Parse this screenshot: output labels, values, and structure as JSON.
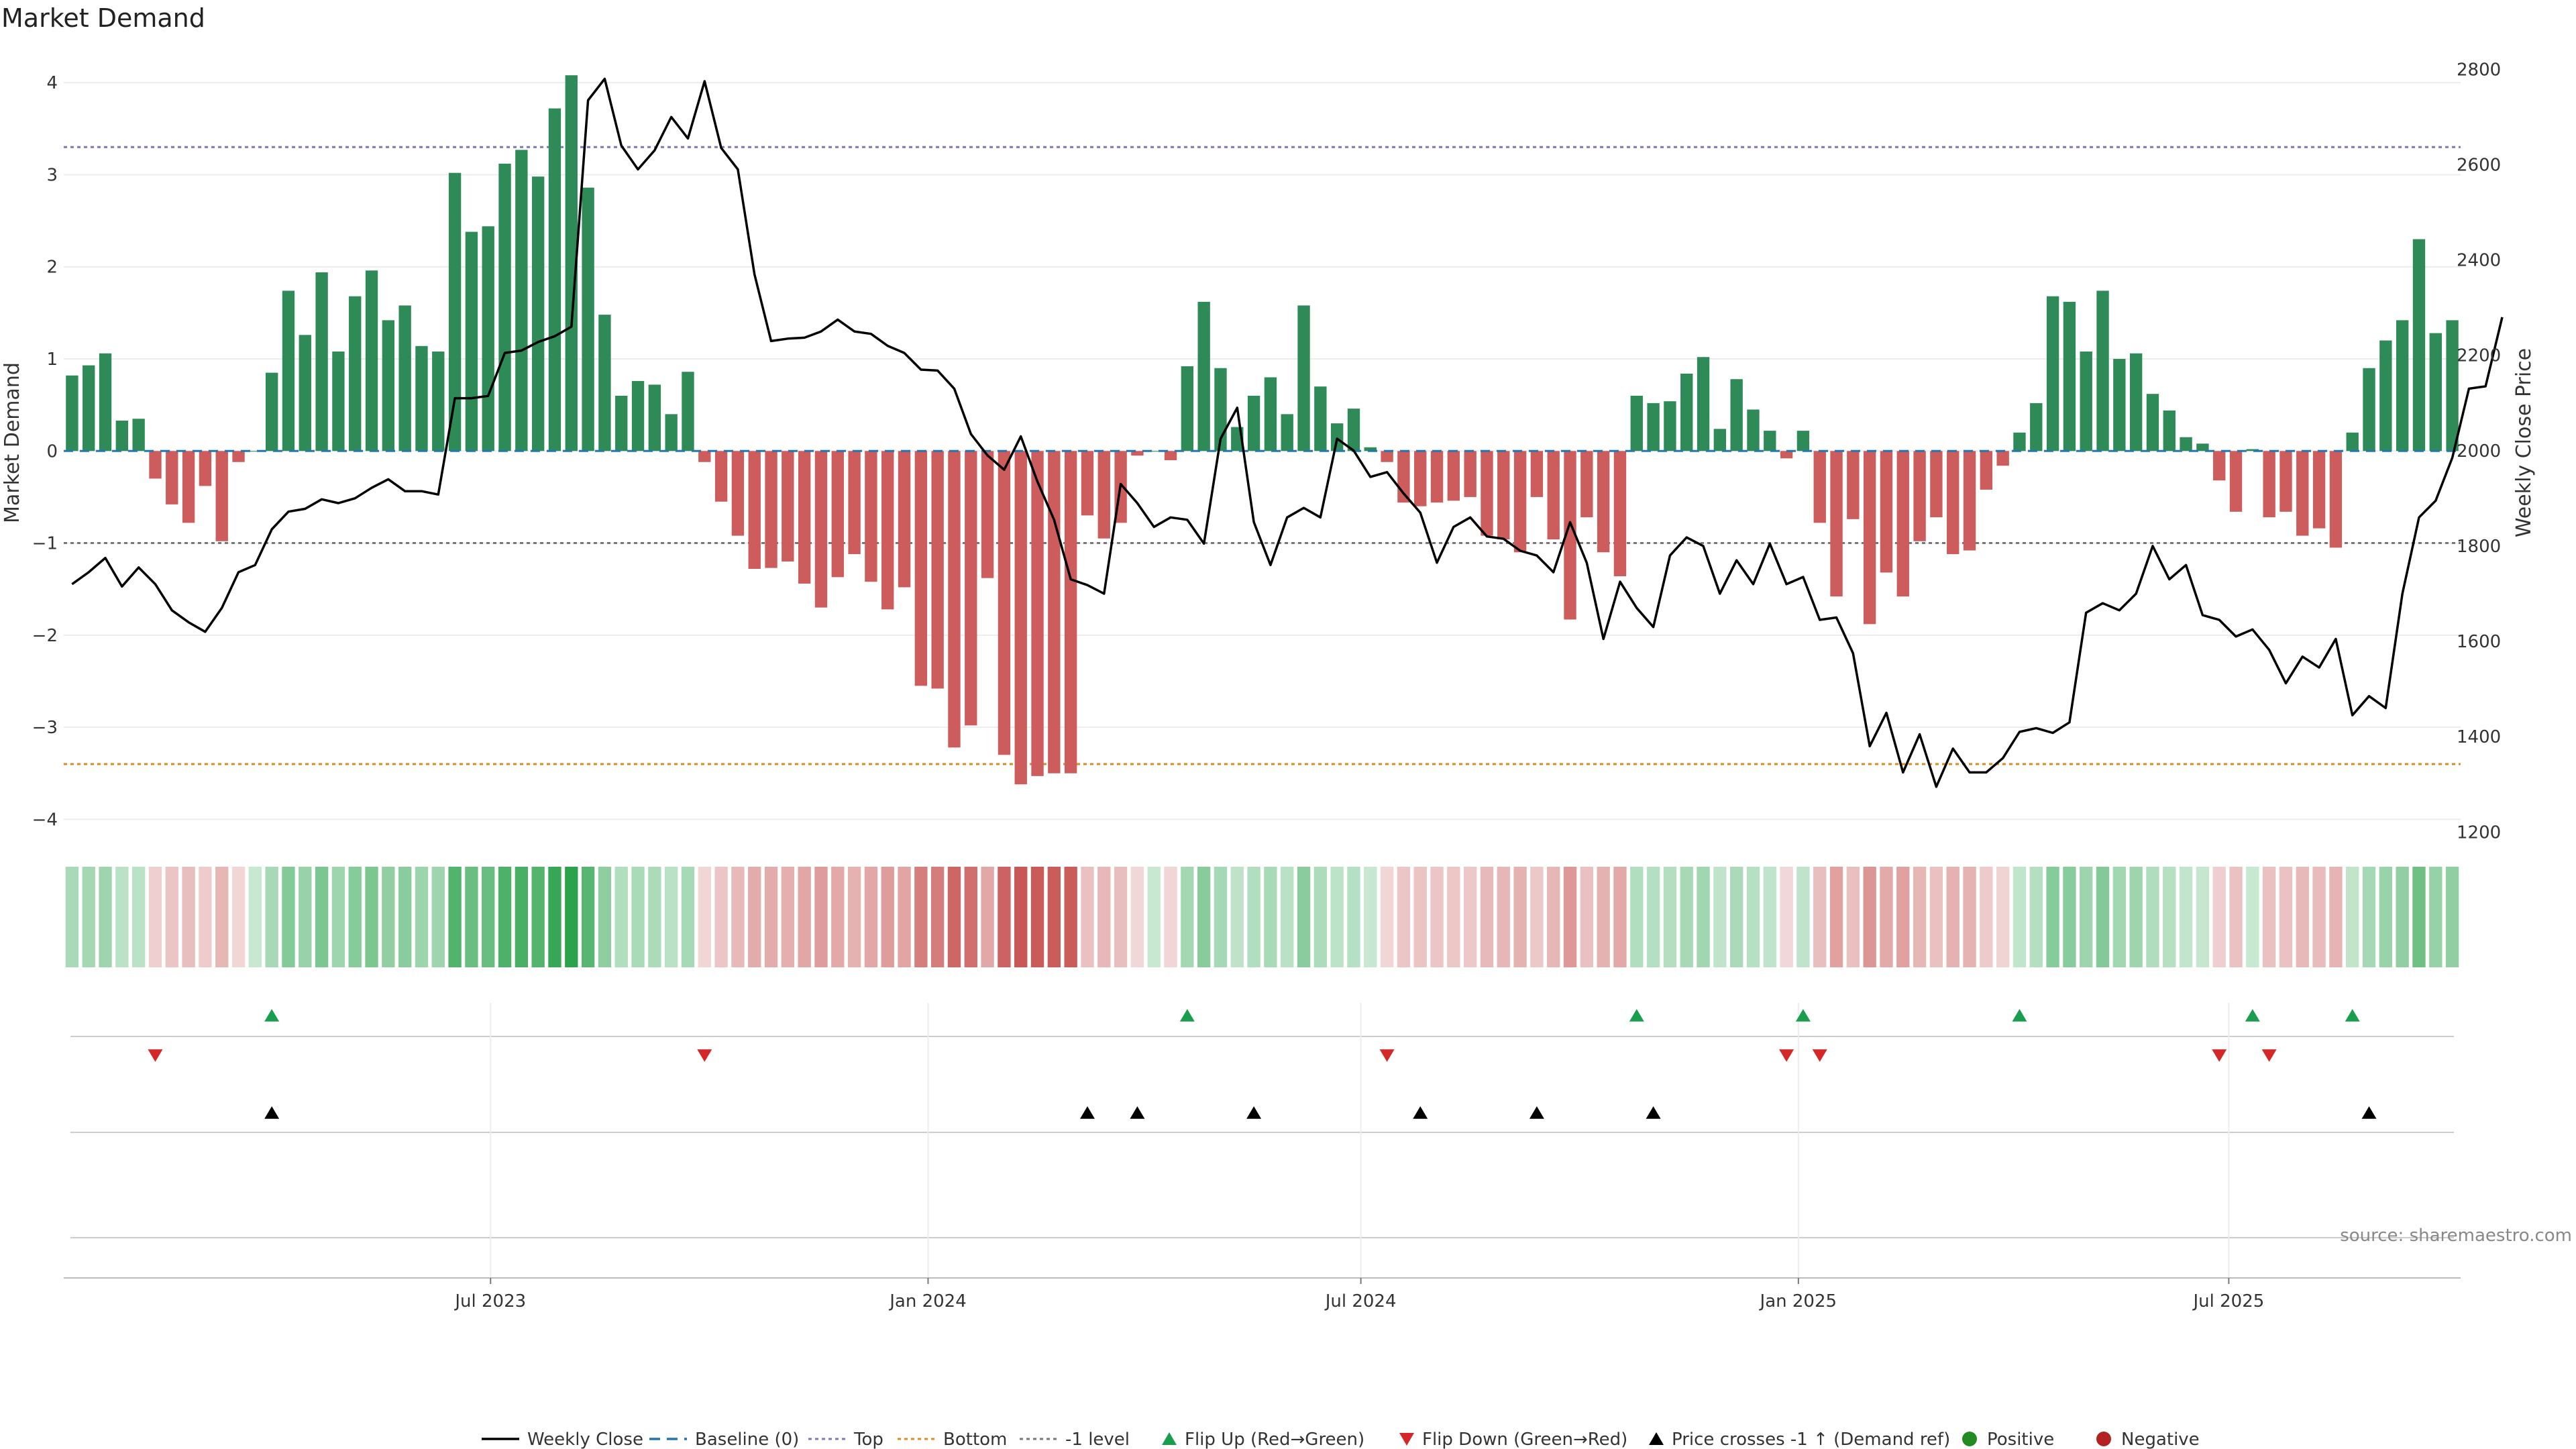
{
  "chart_data": {
    "type": "bar",
    "title": "Market Demand",
    "ylabel_left": "Market Demand",
    "ylabel_right": "Weekly Close Price",
    "ylim_left": [
      -4.5,
      4.3
    ],
    "ylim_right": [
      1130,
      2830
    ],
    "yticks_left": [
      "4",
      "3",
      "2",
      "1",
      "0",
      "−1",
      "−2",
      "−3",
      "−4"
    ],
    "yticks_right": [
      "2800",
      "2600",
      "2400",
      "2200",
      "2000",
      "1800",
      "1600",
      "1400",
      "1200"
    ],
    "xticks": [
      "Jul 2023",
      "Jan 2024",
      "Jul 2024",
      "Jan 2025",
      "Jul 2025"
    ],
    "x_start": "2023-01-06",
    "x_step_days": 7,
    "reference_lines": {
      "top": 3.3,
      "bottom": -3.4,
      "minus_one": -1,
      "baseline": 0
    },
    "demand": [
      0.82,
      0.93,
      1.06,
      0.33,
      0.35,
      -0.3,
      -0.58,
      -0.78,
      -0.38,
      -0.98,
      -0.12,
      0.0,
      0.85,
      1.74,
      1.26,
      1.94,
      1.08,
      1.68,
      1.96,
      1.42,
      1.58,
      1.14,
      1.08,
      3.02,
      2.38,
      2.44,
      3.12,
      3.27,
      2.98,
      3.72,
      4.08,
      2.86,
      1.48,
      0.6,
      0.76,
      0.72,
      0.4,
      0.86,
      -0.12,
      -0.55,
      -0.92,
      -1.28,
      -1.27,
      -1.2,
      -1.44,
      -1.7,
      -1.37,
      -1.12,
      -1.42,
      -1.72,
      -1.48,
      -2.55,
      -2.58,
      -3.22,
      -2.98,
      -1.38,
      -3.3,
      -3.62,
      -3.53,
      -3.5,
      -3.5,
      -0.7,
      -0.95,
      -0.78,
      -0.05,
      0.0,
      -0.1,
      0.92,
      1.62,
      0.9,
      0.26,
      0.6,
      0.8,
      0.4,
      1.58,
      0.7,
      0.3,
      0.46,
      0.04,
      -0.12,
      -0.56,
      -0.6,
      -0.56,
      -0.54,
      -0.5,
      -0.92,
      -0.96,
      -1.1,
      -0.5,
      -0.96,
      -1.83,
      -0.72,
      -1.1,
      -1.36,
      0.6,
      0.52,
      0.54,
      0.84,
      1.02,
      0.24,
      0.78,
      0.45,
      0.22,
      -0.08,
      0.22,
      -0.78,
      -1.58,
      -0.74,
      -1.88,
      -1.32,
      -1.58,
      -0.98,
      -0.72,
      -1.12,
      -1.08,
      -0.42,
      -0.16,
      0.2,
      0.52,
      1.68,
      1.62,
      1.08,
      1.74,
      1.0,
      1.06,
      0.62,
      0.44,
      0.15,
      0.08,
      -0.32,
      -0.66,
      0.02,
      -0.72,
      -0.66,
      -0.92,
      -0.84,
      -1.05,
      0.2,
      0.9,
      1.2,
      1.42,
      2.3,
      1.28,
      1.42
    ],
    "weekly_close": [
      1720,
      1745,
      1775,
      1715,
      1755,
      1720,
      1665,
      1640,
      1620,
      1670,
      1745,
      1760,
      1835,
      1872,
      1878,
      1898,
      1890,
      1900,
      1922,
      1940,
      1915,
      1915,
      1908,
      2110,
      2110,
      2115,
      2205,
      2210,
      2228,
      2240,
      2260,
      2735,
      2780,
      2640,
      2590,
      2630,
      2700,
      2655,
      2775,
      2635,
      2590,
      2370,
      2230,
      2235,
      2237,
      2250,
      2275,
      2250,
      2245,
      2220,
      2205,
      2170,
      2168,
      2130,
      2035,
      1990,
      1960,
      2030,
      1935,
      1855,
      1730,
      1718,
      1700,
      1930,
      1890,
      1840,
      1860,
      1855,
      1805,
      2025,
      2090,
      1850,
      1760,
      1860,
      1880,
      1860,
      2025,
      2000,
      1945,
      1955,
      1910,
      1870,
      1765,
      1840,
      1860,
      1820,
      1815,
      1790,
      1780,
      1745,
      1850,
      1765,
      1605,
      1725,
      1670,
      1630,
      1780,
      1818,
      1800,
      1700,
      1770,
      1720,
      1805,
      1720,
      1735,
      1645,
      1650,
      1575,
      1380,
      1450,
      1325,
      1405,
      1295,
      1375,
      1325,
      1325,
      1355,
      1410,
      1418,
      1408,
      1430,
      1660,
      1680,
      1665,
      1700,
      1800,
      1730,
      1760,
      1655,
      1645,
      1610,
      1625,
      1582,
      1512,
      1568,
      1545,
      1605,
      1445,
      1485,
      1460,
      1700,
      1860,
      1895,
      1985,
      2130,
      2135,
      2280
    ]
  },
  "signals": {
    "flip_up_weeks": [
      12,
      67,
      94,
      104,
      117,
      131,
      137
    ],
    "flip_down_weeks": [
      5,
      38,
      79,
      103,
      105,
      129,
      132
    ],
    "price_cross_weeks": [
      12,
      61,
      64,
      71,
      81,
      88,
      95,
      138
    ]
  },
  "colors": {
    "positive": "#2e8b57",
    "negative": "#cd5c5c",
    "top_line": "#7b78b8",
    "bottom_line": "#e08a1e",
    "minus_one_line": "#777777",
    "baseline": "#1f77b4",
    "flip_up": "#1a9e4e",
    "flip_down": "#d62728",
    "price_cross": "#000000",
    "positive_dot": "#228b22",
    "negative_dot": "#b22222"
  },
  "source": "source: sharemaestro.com",
  "legend": [
    {
      "key": "weekly_close",
      "label": "Weekly Close"
    },
    {
      "key": "baseline",
      "label": "Baseline (0)"
    },
    {
      "key": "top",
      "label": "Top"
    },
    {
      "key": "bottom",
      "label": "Bottom"
    },
    {
      "key": "minus_one",
      "label": "-1 level"
    },
    {
      "key": "flip_up",
      "label": "Flip Up (Red→Green)"
    },
    {
      "key": "flip_down",
      "label": "Flip Down (Green→Red)"
    },
    {
      "key": "price_cross",
      "label": "Price crosses -1 ↑ (Demand ref)"
    },
    {
      "key": "positive",
      "label": "Positive"
    },
    {
      "key": "negative",
      "label": "Negative"
    }
  ]
}
